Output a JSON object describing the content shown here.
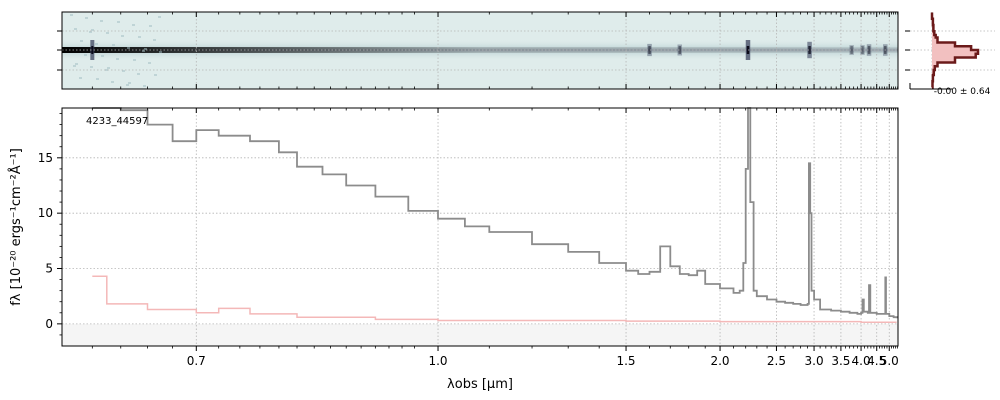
{
  "chart_data": [
    {
      "panel": "2d-spectrum",
      "type": "heatmap",
      "colormap": [
        "#e3eeed",
        "#9fbcc2",
        "#50586e",
        "#0b0b1a"
      ],
      "trace_features": [
        {
          "x": 0.62,
          "intensity": 1.0
        },
        {
          "x": 1.6,
          "intensity": 0.35
        },
        {
          "x": 1.75,
          "intensity": 0.25
        },
        {
          "x": 2.22,
          "intensity": 1.0
        },
        {
          "x": 2.93,
          "intensity": 0.7
        },
        {
          "x": 3.75,
          "intensity": 0.15
        },
        {
          "x": 4.04,
          "intensity": 0.15
        },
        {
          "x": 4.24,
          "intensity": 0.3
        },
        {
          "x": 4.83,
          "intensity": 0.3
        }
      ]
    },
    {
      "panel": "1d-spectrum",
      "type": "line",
      "label": "4233_44597",
      "xlabel": "λobs [μm]",
      "ylabel": "fλ [10⁻²⁰ ergs⁻¹cm⁻²Å⁻¹]",
      "xscale": "reciprocal",
      "xlim": [
        0.6,
        5.42
      ],
      "ylim": [
        -2,
        19.5
      ],
      "xticks": [
        "0.7",
        "1.0",
        "1.5",
        "2.0",
        "2.5",
        "3.0",
        "3.5",
        "4.0",
        "4.5",
        "5.0"
      ],
      "xtick_values": [
        0.7,
        1.0,
        1.5,
        2.0,
        2.5,
        3.0,
        3.5,
        4.0,
        4.5,
        5.0
      ],
      "yticks": [
        0,
        5,
        10,
        15
      ],
      "grid": true,
      "colors": {
        "flux": "#8c8c8c",
        "error": "#f4b8b8"
      },
      "series": [
        {
          "values": [
            [
              0.62,
              19.5
            ],
            [
              0.64,
              19.3
            ],
            [
              0.66,
              18.0
            ],
            [
              0.68,
              16.5
            ],
            [
              0.7,
              17.5
            ],
            [
              0.72,
              17.0
            ],
            [
              0.75,
              16.5
            ],
            [
              0.78,
              15.5
            ],
            [
              0.8,
              14.2
            ],
            [
              0.83,
              13.5
            ],
            [
              0.86,
              12.5
            ],
            [
              0.9,
              11.5
            ],
            [
              0.95,
              10.2
            ],
            [
              1.0,
              9.5
            ],
            [
              1.05,
              8.8
            ],
            [
              1.1,
              8.3
            ],
            [
              1.2,
              7.2
            ],
            [
              1.3,
              6.5
            ],
            [
              1.4,
              5.5
            ],
            [
              1.5,
              4.8
            ],
            [
              1.55,
              4.5
            ],
            [
              1.6,
              4.7
            ],
            [
              1.65,
              7.0
            ],
            [
              1.7,
              5.2
            ],
            [
              1.75,
              4.5
            ],
            [
              1.8,
              4.4
            ],
            [
              1.85,
              4.8
            ],
            [
              1.9,
              3.6
            ],
            [
              2.0,
              3.2
            ],
            [
              2.1,
              2.8
            ],
            [
              2.15,
              3.0
            ],
            [
              2.18,
              5.5
            ],
            [
              2.2,
              14.0
            ],
            [
              2.22,
              19.5
            ],
            [
              2.24,
              11.0
            ],
            [
              2.27,
              3.0
            ],
            [
              2.3,
              2.5
            ],
            [
              2.4,
              2.2
            ],
            [
              2.5,
              2.0
            ],
            [
              2.6,
              1.9
            ],
            [
              2.7,
              1.8
            ],
            [
              2.8,
              1.7
            ],
            [
              2.9,
              1.8
            ],
            [
              2.92,
              14.5
            ],
            [
              2.94,
              10.0
            ],
            [
              2.96,
              3.0
            ],
            [
              3.0,
              2.2
            ],
            [
              3.1,
              1.3
            ],
            [
              3.3,
              1.2
            ],
            [
              3.5,
              1.1
            ],
            [
              3.7,
              1.0
            ],
            [
              3.9,
              0.9
            ],
            [
              4.0,
              1.0
            ],
            [
              4.04,
              2.2
            ],
            [
              4.08,
              1.1
            ],
            [
              4.2,
              1.0
            ],
            [
              4.24,
              3.5
            ],
            [
              4.28,
              1.0
            ],
            [
              4.5,
              0.9
            ],
            [
              4.7,
              0.9
            ],
            [
              4.83,
              4.2
            ],
            [
              4.86,
              0.9
            ],
            [
              5.0,
              0.7
            ],
            [
              5.2,
              0.6
            ],
            [
              5.35,
              0.5
            ]
          ]
        },
        {
          "values": [
            [
              0.62,
              4.3
            ],
            [
              0.63,
              1.8
            ],
            [
              0.66,
              1.3
            ],
            [
              0.7,
              1.0
            ],
            [
              0.72,
              1.4
            ],
            [
              0.75,
              0.9
            ],
            [
              0.8,
              0.6
            ],
            [
              0.9,
              0.4
            ],
            [
              1.0,
              0.3
            ],
            [
              1.5,
              0.25
            ],
            [
              2.0,
              0.2
            ],
            [
              3.0,
              0.2
            ],
            [
              4.0,
              0.15
            ],
            [
              5.0,
              0.15
            ],
            [
              5.35,
              0.15
            ]
          ]
        }
      ]
    },
    {
      "panel": "spatial-profile",
      "type": "area",
      "label": "-0.00 ± 0.64",
      "x": [
        -3.0,
        -2.5,
        -2.0,
        -1.5,
        -1.2,
        -1.0,
        -0.6,
        -0.3,
        0.0,
        0.3,
        0.6,
        1.0,
        1.3,
        1.6,
        2.0,
        2.5,
        3.0
      ],
      "values": [
        0.0,
        0.02,
        0.03,
        0.05,
        0.08,
        0.12,
        0.5,
        0.85,
        1.0,
        0.95,
        0.5,
        0.12,
        0.06,
        0.04,
        0.02,
        0.01,
        0.0
      ],
      "colors": {
        "line": "#6b1a1a",
        "fill": "#f2c0c0"
      }
    }
  ]
}
